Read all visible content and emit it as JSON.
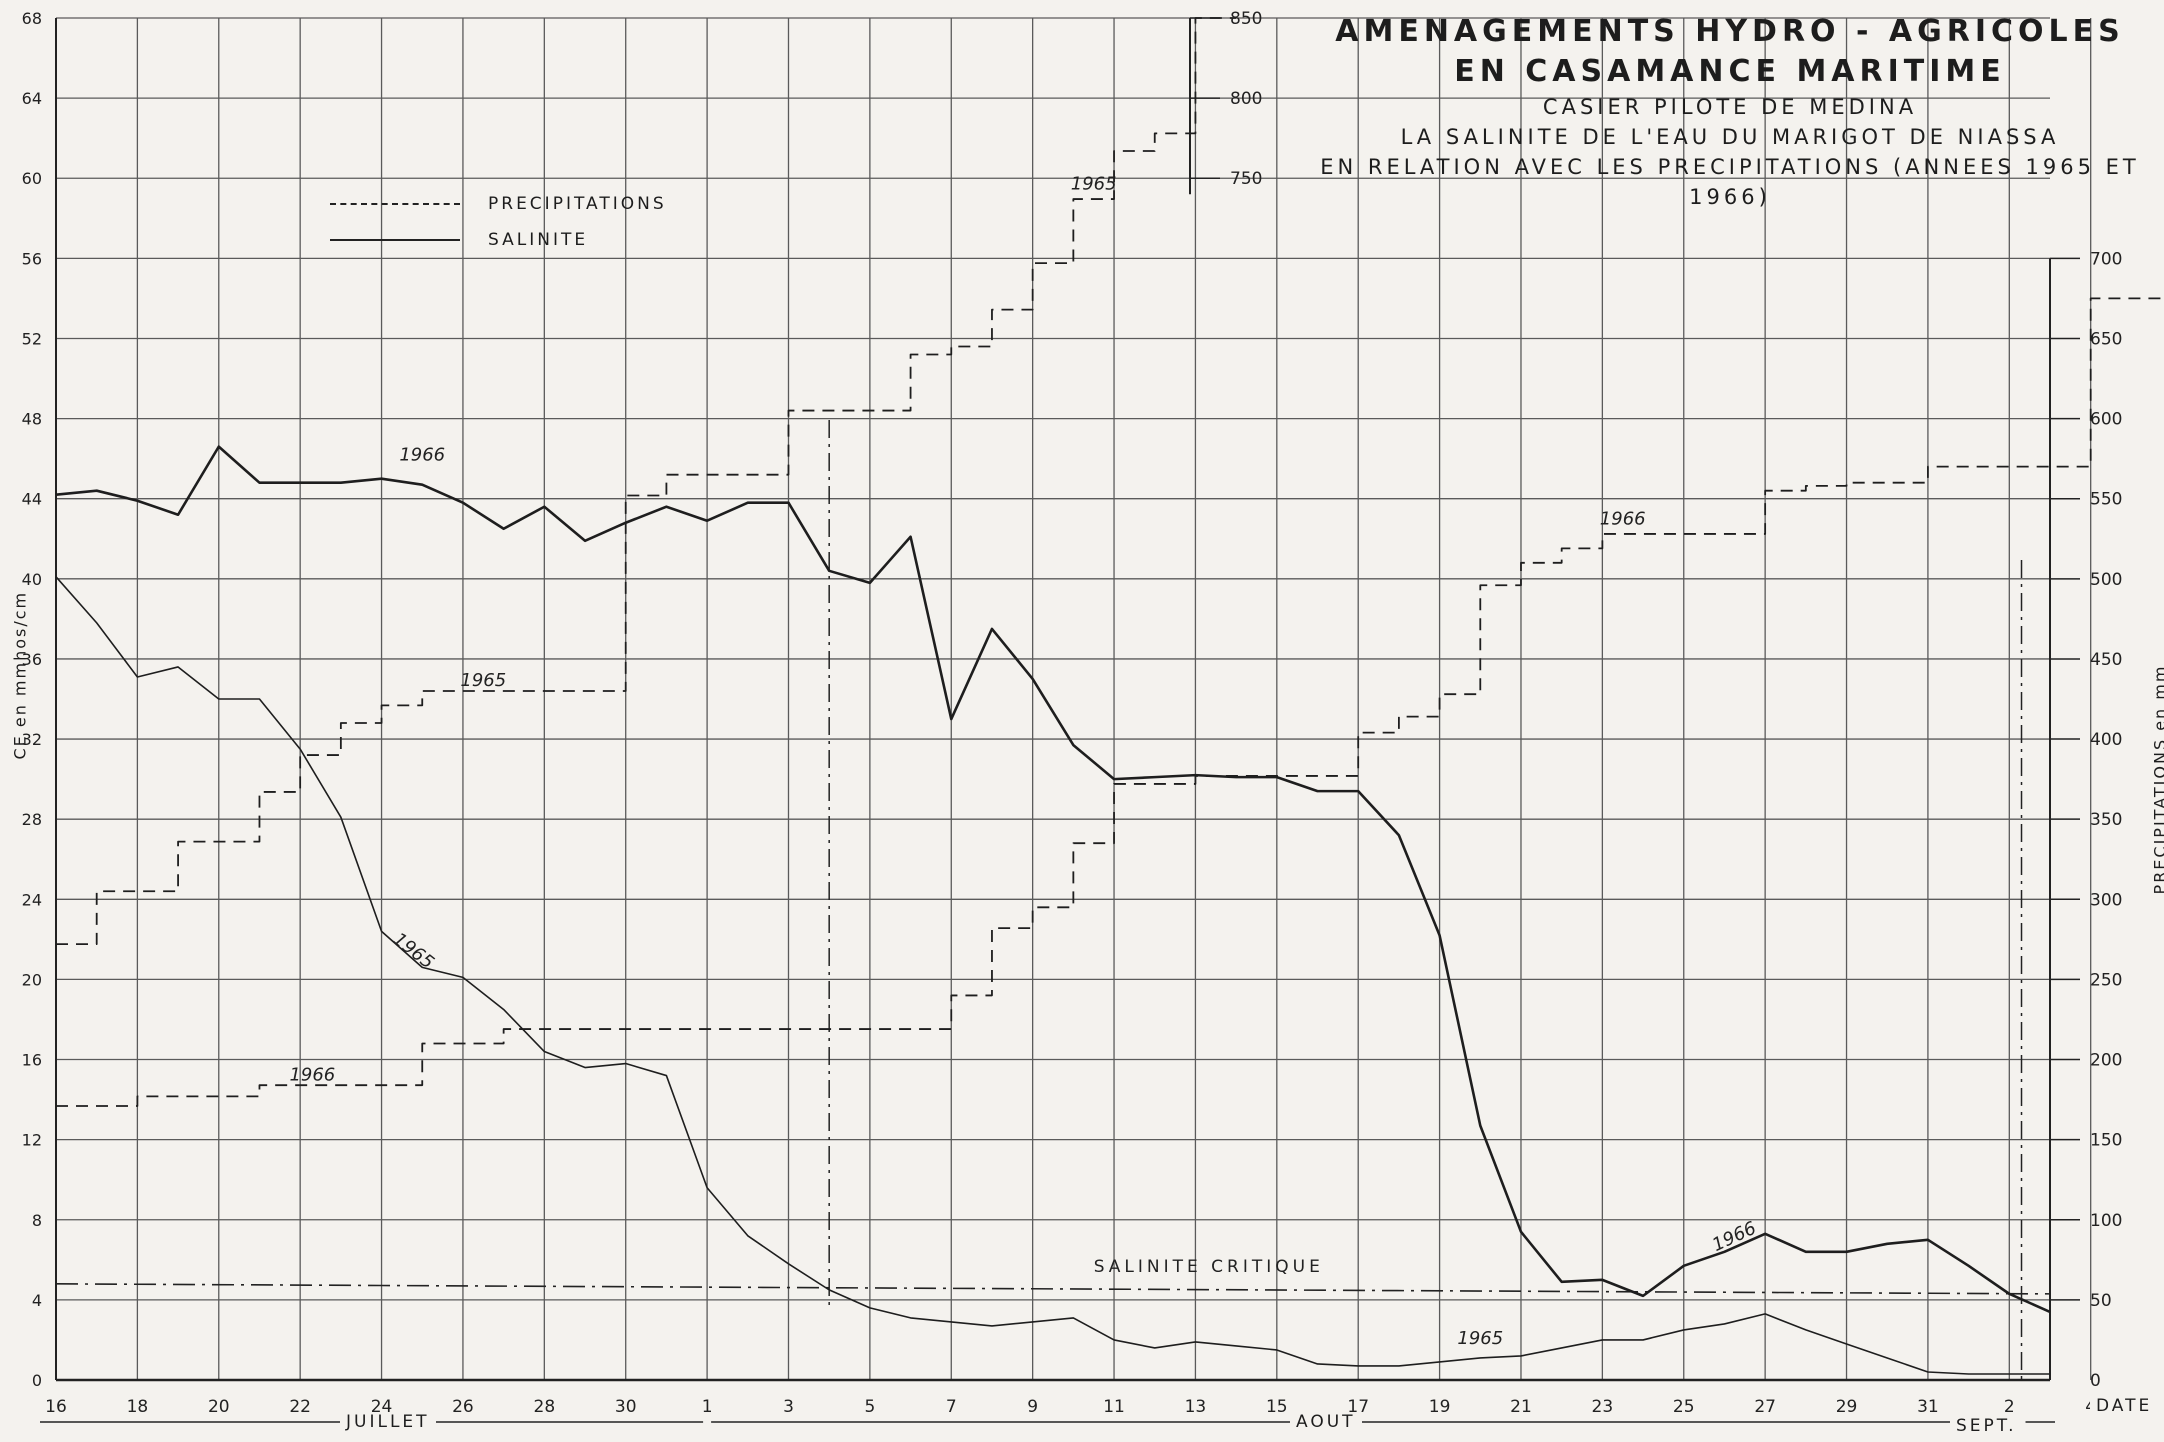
{
  "title": {
    "line1": "AMENAGEMENTS  HYDRO - AGRICOLES",
    "line2": "EN CASAMANCE MARITIME",
    "line3": "CASIER PILOTE DE MEDINA",
    "line4": "LA SALINITE DE L'EAU DU MARIGOT DE NIASSA",
    "line5": "EN RELATION AVEC LES PRECIPITATIONS (ANNEES 1965 ET 1966)"
  },
  "legend": {
    "precip": "PRECIPITATIONS",
    "salinity": "SALINITE"
  },
  "axes": {
    "left_label": "CE en mmhos/cm",
    "right_label": "PRECIPITATIONS en mm",
    "x_label": "DATE",
    "months": [
      "JUILLET",
      "AOUT",
      "SEPT."
    ]
  },
  "critical_label": "SALINITE CRITIQUE",
  "chart_data": {
    "type": "line",
    "x_tick_labels": [
      "16",
      "18",
      "20",
      "22",
      "24",
      "26",
      "28",
      "30",
      "1",
      "3",
      "5",
      "7",
      "9",
      "11",
      "13",
      "15",
      "17",
      "19",
      "21",
      "23",
      "25",
      "27",
      "29",
      "31",
      "2",
      "4"
    ],
    "y_left": {
      "label": "CE en mmhos/cm",
      "range": [
        0,
        68
      ],
      "ticks": [
        0,
        4,
        8,
        12,
        16,
        20,
        24,
        28,
        32,
        36,
        40,
        44,
        48,
        52,
        56,
        60,
        64,
        68
      ]
    },
    "y_right": {
      "label": "PRECIPITATIONS en mm",
      "range": [
        0,
        850
      ],
      "ticks": [
        0,
        50,
        100,
        150,
        200,
        250,
        300,
        350,
        400,
        450,
        500,
        550,
        600,
        650,
        700,
        750,
        800,
        850
      ]
    },
    "critical_salinity": 4.8,
    "series": [
      {
        "name": "SALINITE 1966",
        "label": "1966",
        "axis": "left",
        "style": "solid",
        "weight": 2.6,
        "points": [
          [
            16,
            44.2
          ],
          [
            17,
            44.4
          ],
          [
            18,
            43.9
          ],
          [
            19,
            43.2
          ],
          [
            20,
            46.6
          ],
          [
            21,
            44.8
          ],
          [
            22,
            44.8
          ],
          [
            23,
            44.8
          ],
          [
            24,
            45.0
          ],
          [
            25,
            44.7
          ],
          [
            26,
            43.8
          ],
          [
            27,
            42.5
          ],
          [
            28,
            43.6
          ],
          [
            29,
            41.9
          ],
          [
            30,
            42.8
          ],
          [
            31,
            43.6
          ],
          [
            32,
            42.9
          ],
          [
            33,
            43.8
          ],
          [
            34,
            43.8
          ],
          [
            35,
            40.4
          ],
          [
            36,
            39.8
          ],
          [
            37,
            42.1
          ],
          [
            38,
            33.0
          ],
          [
            39,
            37.5
          ],
          [
            40,
            35.0
          ],
          [
            41,
            31.7
          ],
          [
            42,
            30.0
          ],
          [
            43,
            30.1
          ],
          [
            44,
            30.2
          ],
          [
            45,
            30.1
          ],
          [
            46,
            30.1
          ],
          [
            47,
            29.4
          ],
          [
            48,
            29.4
          ],
          [
            49,
            27.2
          ],
          [
            50,
            22.2
          ],
          [
            51,
            12.7
          ],
          [
            52,
            7.4
          ],
          [
            53,
            4.9
          ],
          [
            54,
            5.0
          ],
          [
            55,
            4.2
          ],
          [
            56,
            5.7
          ],
          [
            57,
            6.4
          ],
          [
            58,
            7.3
          ],
          [
            59,
            6.4
          ],
          [
            60,
            6.4
          ],
          [
            61,
            6.8
          ],
          [
            62,
            7.0
          ],
          [
            63,
            5.7
          ],
          [
            64,
            4.3
          ],
          [
            65,
            3.4
          ]
        ]
      },
      {
        "name": "SALINITE 1965",
        "label": "1965",
        "axis": "left",
        "style": "solid",
        "weight": 1.6,
        "points": [
          [
            16,
            40.1
          ],
          [
            17,
            37.8
          ],
          [
            18,
            35.1
          ],
          [
            19,
            35.6
          ],
          [
            20,
            34.0
          ],
          [
            21,
            34.0
          ],
          [
            22,
            31.5
          ],
          [
            23,
            28.1
          ],
          [
            24,
            22.4
          ],
          [
            25,
            20.6
          ],
          [
            26,
            20.1
          ],
          [
            27,
            18.5
          ],
          [
            28,
            16.4
          ],
          [
            29,
            15.6
          ],
          [
            30,
            15.8
          ],
          [
            31,
            15.2
          ],
          [
            32,
            9.6
          ],
          [
            33,
            7.2
          ],
          [
            34,
            5.8
          ],
          [
            35,
            4.5
          ],
          [
            36,
            3.6
          ],
          [
            37,
            3.1
          ],
          [
            38,
            2.9
          ],
          [
            39,
            2.7
          ],
          [
            40,
            2.9
          ],
          [
            41,
            3.1
          ],
          [
            42,
            2.0
          ],
          [
            43,
            1.6
          ],
          [
            44,
            1.9
          ],
          [
            45,
            1.7
          ],
          [
            46,
            1.5
          ],
          [
            47,
            0.8
          ],
          [
            48,
            0.7
          ],
          [
            49,
            0.7
          ],
          [
            50,
            0.9
          ],
          [
            51,
            1.1
          ],
          [
            52,
            1.2
          ],
          [
            53,
            1.6
          ],
          [
            54,
            2.0
          ],
          [
            55,
            2.0
          ],
          [
            56,
            2.5
          ],
          [
            57,
            2.8
          ],
          [
            58,
            3.3
          ],
          [
            59,
            2.5
          ],
          [
            60,
            1.8
          ],
          [
            61,
            1.1
          ],
          [
            62,
            0.4
          ],
          [
            63,
            0.3
          ],
          [
            64,
            0.3
          ],
          [
            65,
            0.3
          ]
        ]
      },
      {
        "name": "PRECIPITATIONS 1965",
        "label": "1965",
        "axis": "right",
        "style": "dashed",
        "step": true,
        "points": [
          [
            16,
            272
          ],
          [
            17,
            305
          ],
          [
            18,
            305
          ],
          [
            19,
            336
          ],
          [
            20,
            336
          ],
          [
            21,
            367
          ],
          [
            22,
            390
          ],
          [
            23,
            410
          ],
          [
            24,
            421
          ],
          [
            25,
            430
          ],
          [
            26,
            430
          ],
          [
            27,
            430
          ],
          [
            28,
            430
          ],
          [
            29,
            430
          ],
          [
            30,
            552
          ],
          [
            31,
            565
          ],
          [
            32,
            565
          ],
          [
            33,
            565
          ],
          [
            34,
            605
          ],
          [
            35,
            605
          ],
          [
            36,
            605
          ],
          [
            37,
            640
          ],
          [
            38,
            645
          ],
          [
            39,
            668
          ],
          [
            40,
            697
          ],
          [
            41,
            737
          ],
          [
            42,
            767
          ],
          [
            43,
            778
          ],
          [
            44,
            850
          ]
        ]
      },
      {
        "name": "PRECIPITATIONS 1966",
        "label": "1966",
        "axis": "right",
        "style": "dashed",
        "step": true,
        "points": [
          [
            16,
            171
          ],
          [
            17,
            171
          ],
          [
            18,
            177
          ],
          [
            19,
            177
          ],
          [
            20,
            177
          ],
          [
            21,
            184
          ],
          [
            22,
            184
          ],
          [
            23,
            184
          ],
          [
            24,
            184
          ],
          [
            25,
            210
          ],
          [
            26,
            210
          ],
          [
            27,
            219
          ],
          [
            28,
            219
          ],
          [
            29,
            219
          ],
          [
            30,
            219
          ],
          [
            31,
            219
          ],
          [
            32,
            219
          ],
          [
            33,
            219
          ],
          [
            34,
            219
          ],
          [
            35,
            219
          ],
          [
            36,
            219
          ],
          [
            37,
            219
          ],
          [
            38,
            240
          ],
          [
            39,
            282
          ],
          [
            40,
            295
          ],
          [
            41,
            335
          ],
          [
            42,
            372
          ],
          [
            43,
            372
          ],
          [
            44,
            377
          ],
          [
            45,
            377
          ],
          [
            46,
            377
          ],
          [
            47,
            377
          ],
          [
            48,
            404
          ],
          [
            49,
            414
          ],
          [
            50,
            428
          ],
          [
            51,
            496
          ],
          [
            52,
            510
          ],
          [
            53,
            519
          ],
          [
            54,
            528
          ],
          [
            55,
            528
          ],
          [
            56,
            528
          ],
          [
            57,
            528
          ],
          [
            58,
            555
          ],
          [
            59,
            558
          ],
          [
            60,
            560
          ],
          [
            61,
            560
          ],
          [
            62,
            570
          ],
          [
            63,
            570
          ],
          [
            64,
            570
          ],
          [
            65,
            570
          ],
          [
            66,
            675
          ],
          [
            67,
            675
          ]
        ]
      }
    ],
    "annotations": [
      {
        "text": "1966",
        "x": 25.0,
        "y": 45.9,
        "axis": "left"
      },
      {
        "text": "1965",
        "x": 24.7,
        "y": 21.2,
        "axis": "left",
        "rotate": 38
      },
      {
        "text": "1966",
        "x": 57.3,
        "y": 6.9,
        "axis": "left",
        "rotate": -25
      },
      {
        "text": "1965",
        "x": 51.0,
        "y": 1.8,
        "axis": "left"
      },
      {
        "text": "1965",
        "x": 26.5,
        "y": 433,
        "axis": "right"
      },
      {
        "text": "1966",
        "x": 22.3,
        "y": 187,
        "axis": "right"
      },
      {
        "text": "1965",
        "x": 41.5,
        "y": 743,
        "axis": "right"
      },
      {
        "text": "1966",
        "x": 54.5,
        "y": 534,
        "axis": "right"
      }
    ]
  }
}
